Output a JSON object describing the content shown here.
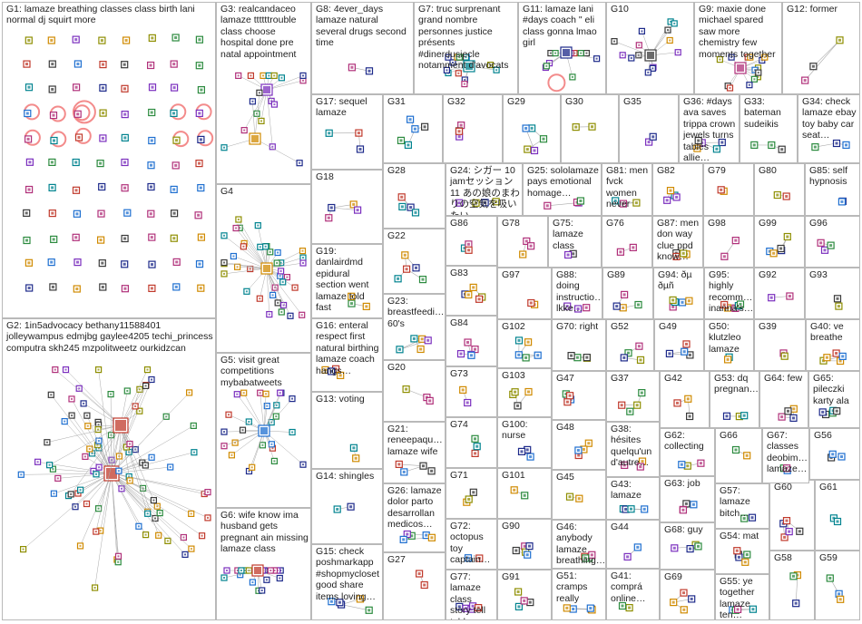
{
  "groups": [
    {
      "id": "G1",
      "label": "G1: lamaze breathing classes class birth lani normal dj squirt more",
      "captions": []
    },
    {
      "id": "G2",
      "label": "G2: 1in5advocacy bethany11588401 jolleywampus edmjbg gaylee4205 techi_princess computra skh245 mzpolitweetz ourkidzcan",
      "captions": []
    },
    {
      "id": "G3",
      "label": "G3: realcandaceo lamaze ttttttrouble class choose hospital done pre natal appointment",
      "captions": []
    },
    {
      "id": "G4",
      "label": "G4",
      "captions": []
    },
    {
      "id": "G5",
      "label": "G5: visit great competitions mybabatweets",
      "captions": []
    },
    {
      "id": "G6",
      "label": "G6: wife know ima husband gets pregnant ain missing lamaze class",
      "captions": []
    },
    {
      "id": "G7",
      "label": "G7: truc surprenant grand nombre personnes justice présents #dinerdusiecle notamment d'avocats",
      "captions": []
    },
    {
      "id": "G8",
      "label": "G8: 4ever_days lamaze natural several drugs second time",
      "captions": []
    },
    {
      "id": "G9",
      "label": "G9: maxie done michael spared saw more chemistry few moments together",
      "captions": []
    },
    {
      "id": "G10",
      "label": "G10",
      "captions": []
    },
    {
      "id": "G11",
      "label": "G11: lamaze lani #days coach \" eli class gonna lmao girl",
      "captions": []
    },
    {
      "id": "G12",
      "label": "G12: former",
      "captions": []
    },
    {
      "id": "G13",
      "label": "G13: voting",
      "captions": []
    },
    {
      "id": "G14",
      "label": "G14: shingles",
      "captions": []
    },
    {
      "id": "G15",
      "label": "G15: check poshmarkapp #shopmycloset good share items loving…",
      "captions": []
    },
    {
      "id": "G16",
      "label": "G16: enteral respect first natural birthing lamaze coach hangs…",
      "captions": []
    },
    {
      "id": "G17",
      "label": "G17: sequel lamaze",
      "captions": []
    },
    {
      "id": "G18",
      "label": "G18",
      "captions": []
    },
    {
      "id": "G19",
      "label": "G19: danlairdmd epidural section went lamaze told fast",
      "captions": []
    },
    {
      "id": "G20",
      "label": "G20",
      "captions": []
    },
    {
      "id": "G21",
      "label": "G21: reneepaqu… lamaze wife",
      "captions": []
    },
    {
      "id": "G22",
      "label": "G22",
      "captions": []
    },
    {
      "id": "G23",
      "label": "G23: breastfeedi… 60's",
      "captions": []
    },
    {
      "id": "G24",
      "label": "G24: シガー 10 jamセッション 11 あの娘のまわりの空気を吸いたい…",
      "captions": []
    },
    {
      "id": "G25",
      "label": "G25: sololamaze pays emotional homage…",
      "captions": []
    },
    {
      "id": "G26",
      "label": "G26: lamaze dolor parto desarrollan medicos…",
      "captions": []
    },
    {
      "id": "G27",
      "label": "G27",
      "captions": []
    },
    {
      "id": "G28",
      "label": "G28",
      "captions": []
    },
    {
      "id": "G29",
      "label": "G29",
      "captions": []
    },
    {
      "id": "G30",
      "label": "G30",
      "captions": []
    },
    {
      "id": "G31",
      "label": "G31",
      "captions": []
    },
    {
      "id": "G32",
      "label": "G32",
      "captions": []
    },
    {
      "id": "G33",
      "label": "G33: bateman sudeikis",
      "captions": []
    },
    {
      "id": "G34",
      "label": "G34: check lamaze ebay toy baby car seat…",
      "captions": []
    },
    {
      "id": "G35",
      "label": "G35",
      "captions": []
    },
    {
      "id": "G36",
      "label": "G36: #days ava saves trippa crown jewels turns tables allie…",
      "captions": []
    },
    {
      "id": "G37",
      "label": "G37",
      "captions": []
    },
    {
      "id": "G38",
      "label": "G38: hésites quelqu'un d'autre…",
      "captions": []
    },
    {
      "id": "G39",
      "label": "G39",
      "captions": []
    },
    {
      "id": "G40",
      "label": "G40: ve breathe",
      "captions": []
    },
    {
      "id": "G41",
      "label": "G41: comprá online…",
      "captions": []
    },
    {
      "id": "G42",
      "label": "G42",
      "captions": []
    },
    {
      "id": "G43",
      "label": "G43: lamaze",
      "captions": []
    },
    {
      "id": "G44",
      "label": "G44",
      "captions": []
    },
    {
      "id": "G45",
      "label": "G45",
      "captions": []
    },
    {
      "id": "G46",
      "label": "G46: anybody lamaze breathing…",
      "captions": []
    },
    {
      "id": "G47",
      "label": "G47",
      "captions": []
    },
    {
      "id": "G48",
      "label": "G48",
      "captions": []
    },
    {
      "id": "G49",
      "label": "G49",
      "captions": []
    },
    {
      "id": "G50",
      "label": "G50: klutzleo lamaze",
      "captions": []
    },
    {
      "id": "G51",
      "label": "G51: cramps really",
      "captions": []
    },
    {
      "id": "G52",
      "label": "G52",
      "captions": []
    },
    {
      "id": "G53",
      "label": "G53: dq pregnan…",
      "captions": []
    },
    {
      "id": "G54",
      "label": "G54: mat",
      "captions": []
    },
    {
      "id": "G55",
      "label": "G55: ye together lamaze ten…",
      "captions": []
    },
    {
      "id": "G56",
      "label": "G56",
      "captions": []
    },
    {
      "id": "G57",
      "label": "G57: lamaze bitch…",
      "captions": []
    },
    {
      "id": "G58",
      "label": "G58",
      "captions": []
    },
    {
      "id": "G59",
      "label": "G59",
      "captions": []
    },
    {
      "id": "G60",
      "label": "G60",
      "captions": []
    },
    {
      "id": "G61",
      "label": "G61",
      "captions": []
    },
    {
      "id": "G62",
      "label": "G62: collecting",
      "captions": []
    },
    {
      "id": "G63",
      "label": "G63: job",
      "captions": []
    },
    {
      "id": "G64",
      "label": "G64: few",
      "captions": []
    },
    {
      "id": "G65",
      "label": "G65: pileczki karty ala",
      "captions": []
    },
    {
      "id": "G66",
      "label": "G66",
      "captions": []
    },
    {
      "id": "G67",
      "label": "G67: classes deobim… lamaze…",
      "captions": []
    },
    {
      "id": "G68",
      "label": "G68: guy",
      "captions": []
    },
    {
      "id": "G69",
      "label": "G69",
      "captions": []
    },
    {
      "id": "G70",
      "label": "G70: right",
      "captions": []
    },
    {
      "id": "G71",
      "label": "G71",
      "captions": []
    },
    {
      "id": "G72",
      "label": "G72: octopus toy captain…",
      "captions": []
    },
    {
      "id": "G73",
      "label": "G73",
      "captions": []
    },
    {
      "id": "G74",
      "label": "G74",
      "captions": []
    },
    {
      "id": "G75",
      "label": "G75: lamaze class",
      "captions": []
    },
    {
      "id": "G76",
      "label": "G76",
      "captions": []
    },
    {
      "id": "G77",
      "label": "G77: lamaze class story tell told…",
      "captions": []
    },
    {
      "id": "G78",
      "label": "G78",
      "captions": []
    },
    {
      "id": "G79",
      "label": "G79",
      "captions": []
    },
    {
      "id": "G80",
      "label": "G80",
      "captions": []
    },
    {
      "id": "G81",
      "label": "G81: men fvck women never",
      "captions": []
    },
    {
      "id": "G82",
      "label": "G82",
      "captions": []
    },
    {
      "id": "G83",
      "label": "G83",
      "captions": []
    },
    {
      "id": "G84",
      "label": "G84",
      "captions": []
    },
    {
      "id": "G85",
      "label": "G85: self hypnosis",
      "captions": []
    },
    {
      "id": "G86",
      "label": "G86",
      "captions": []
    },
    {
      "id": "G87",
      "label": "G87: men don way clue ppd know…",
      "captions": []
    },
    {
      "id": "G88",
      "label": "G88: doing instructio… lkke…",
      "captions": []
    },
    {
      "id": "G89",
      "label": "G89",
      "captions": []
    },
    {
      "id": "G90",
      "label": "G90",
      "captions": []
    },
    {
      "id": "G91",
      "label": "G91",
      "captions": []
    },
    {
      "id": "G92",
      "label": "G92",
      "captions": []
    },
    {
      "id": "G93",
      "label": "G93",
      "captions": []
    },
    {
      "id": "G94",
      "label": "G94: ðµ ðµñ",
      "captions": []
    },
    {
      "id": "G95",
      "label": "G95: highly recomm… inanna's…",
      "captions": []
    },
    {
      "id": "G96",
      "label": "G96",
      "captions": []
    },
    {
      "id": "G97",
      "label": "G97",
      "captions": []
    },
    {
      "id": "G98",
      "label": "G98",
      "captions": []
    },
    {
      "id": "G99",
      "label": "G99",
      "captions": []
    },
    {
      "id": "G100",
      "label": "G100: nurse",
      "captions": []
    },
    {
      "id": "G101",
      "label": "G101",
      "captions": []
    },
    {
      "id": "G102",
      "label": "G102",
      "captions": []
    },
    {
      "id": "G103",
      "label": "G103",
      "captions": []
    }
  ],
  "colors": {
    "panel_border": "#b9b9b9",
    "edge": "#a9a9a9",
    "self_loop": "#f06e6e",
    "node_palette": [
      "#1d2a8a",
      "#2b8a3e",
      "#7b2fbe",
      "#d08a00",
      "#1e6fd0",
      "#c0392b",
      "#00838f",
      "#8e8e00",
      "#b0307a",
      "#3a3a3a"
    ]
  }
}
